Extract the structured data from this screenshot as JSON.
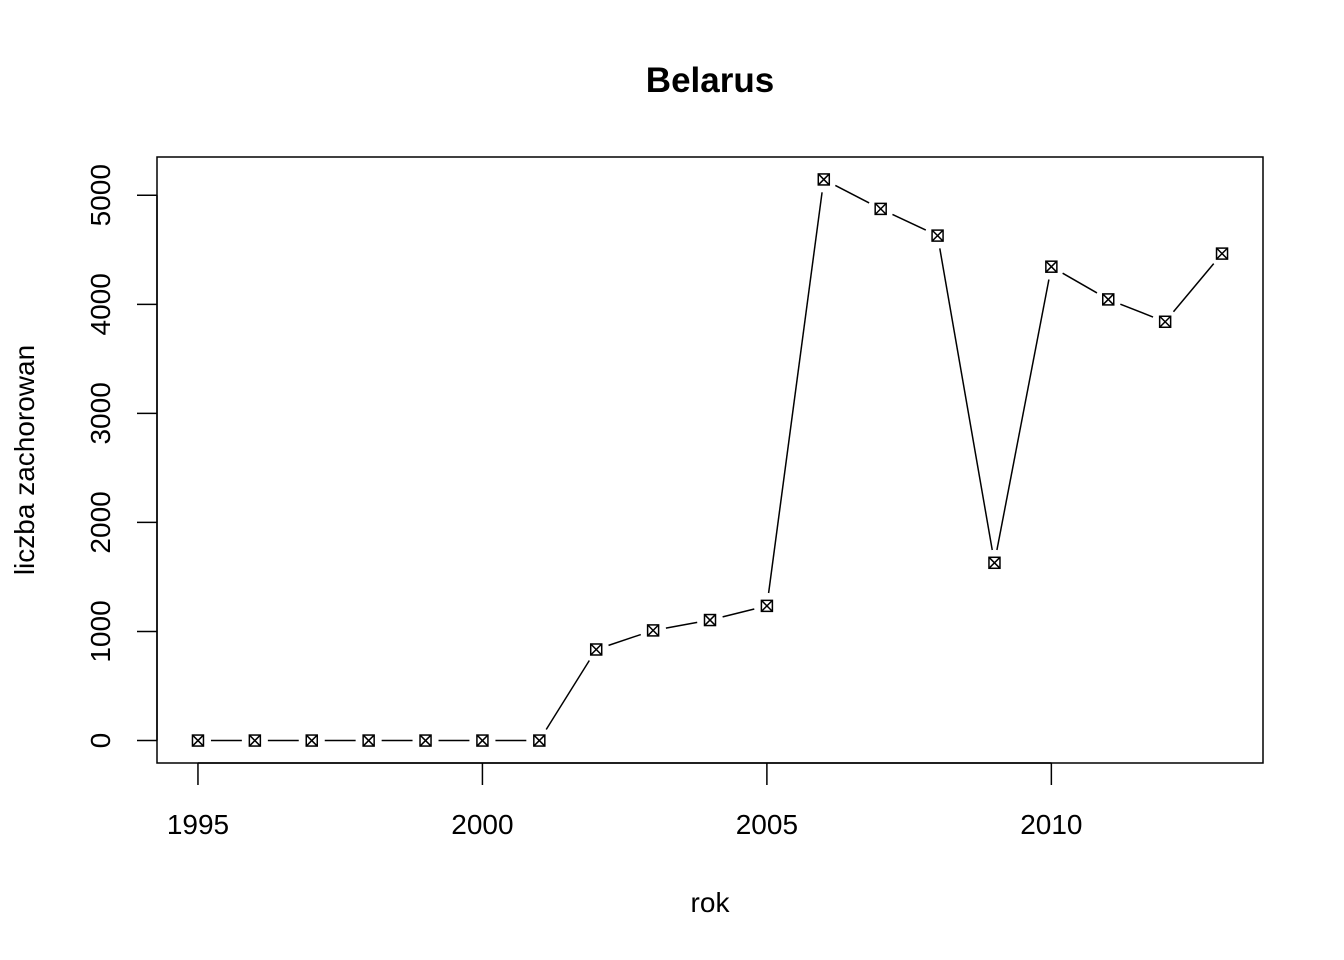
{
  "chart_data": {
    "type": "line",
    "title": "Belarus",
    "xlabel": "rok",
    "ylabel": "liczba zachorowan",
    "x": [
      1995,
      1996,
      1997,
      1998,
      1999,
      2000,
      2001,
      2002,
      2003,
      2004,
      2005,
      2006,
      2007,
      2008,
      2009,
      2010,
      2011,
      2012,
      2013
    ],
    "y": [
      0,
      0,
      0,
      0,
      0,
      0,
      0,
      835,
      1010,
      1105,
      1235,
      5145,
      4875,
      4630,
      1630,
      4345,
      4045,
      3840,
      4465
    ],
    "xticks": [
      1995,
      2000,
      2005,
      2010
    ],
    "xtick_labels": [
      "1995",
      "2000",
      "2005",
      "2010"
    ],
    "yticks": [
      0,
      1000,
      2000,
      3000,
      4000,
      5000
    ],
    "ytick_labels": [
      "0",
      "1000",
      "2000",
      "3000",
      "4000",
      "5000"
    ],
    "xlim": [
      1994.28,
      2013.72
    ],
    "ylim": [
      -205.8,
      5350.8
    ],
    "line_style": "dashed-with-gaps",
    "marker": "box-x",
    "grid": false,
    "legend": "none"
  }
}
